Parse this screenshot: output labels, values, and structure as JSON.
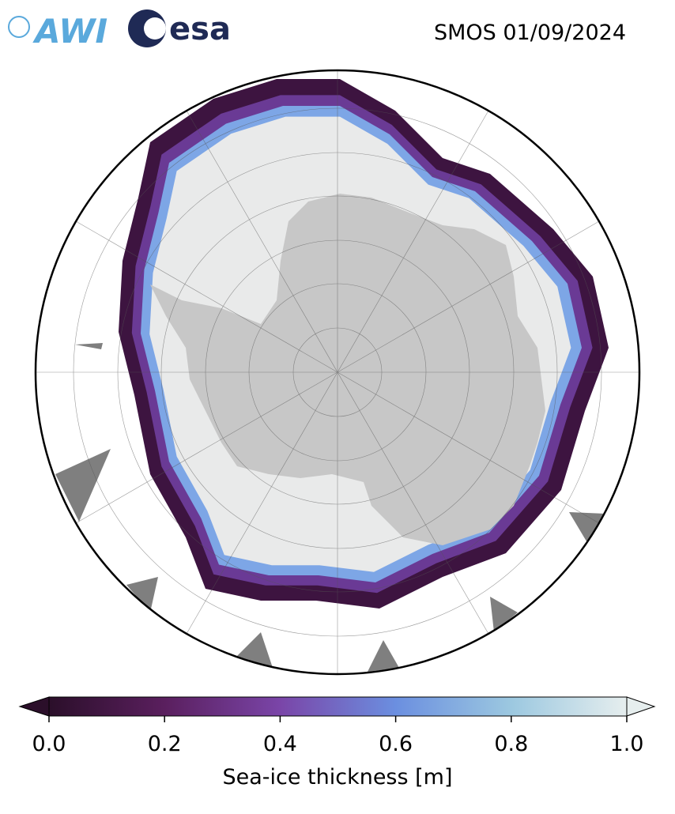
{
  "header": {
    "logos": [
      "AWI",
      "esa"
    ],
    "title": "SMOS 01/09/2024"
  },
  "colorbar": {
    "label": "Sea-ice thickness [m]",
    "lim": [
      0,
      1
    ],
    "ticks": [
      {
        "value": 0,
        "label": "0.0"
      },
      0.2,
      0.4,
      0.6,
      0.8,
      {
        "value": 1,
        "label": "1.0"
      }
    ],
    "colors": [
      "#2b0f2a",
      "#5a1f5e",
      "#7a45a8",
      "#6b8fe0",
      "#9cc8e0",
      "#e6eeee"
    ]
  }
}
